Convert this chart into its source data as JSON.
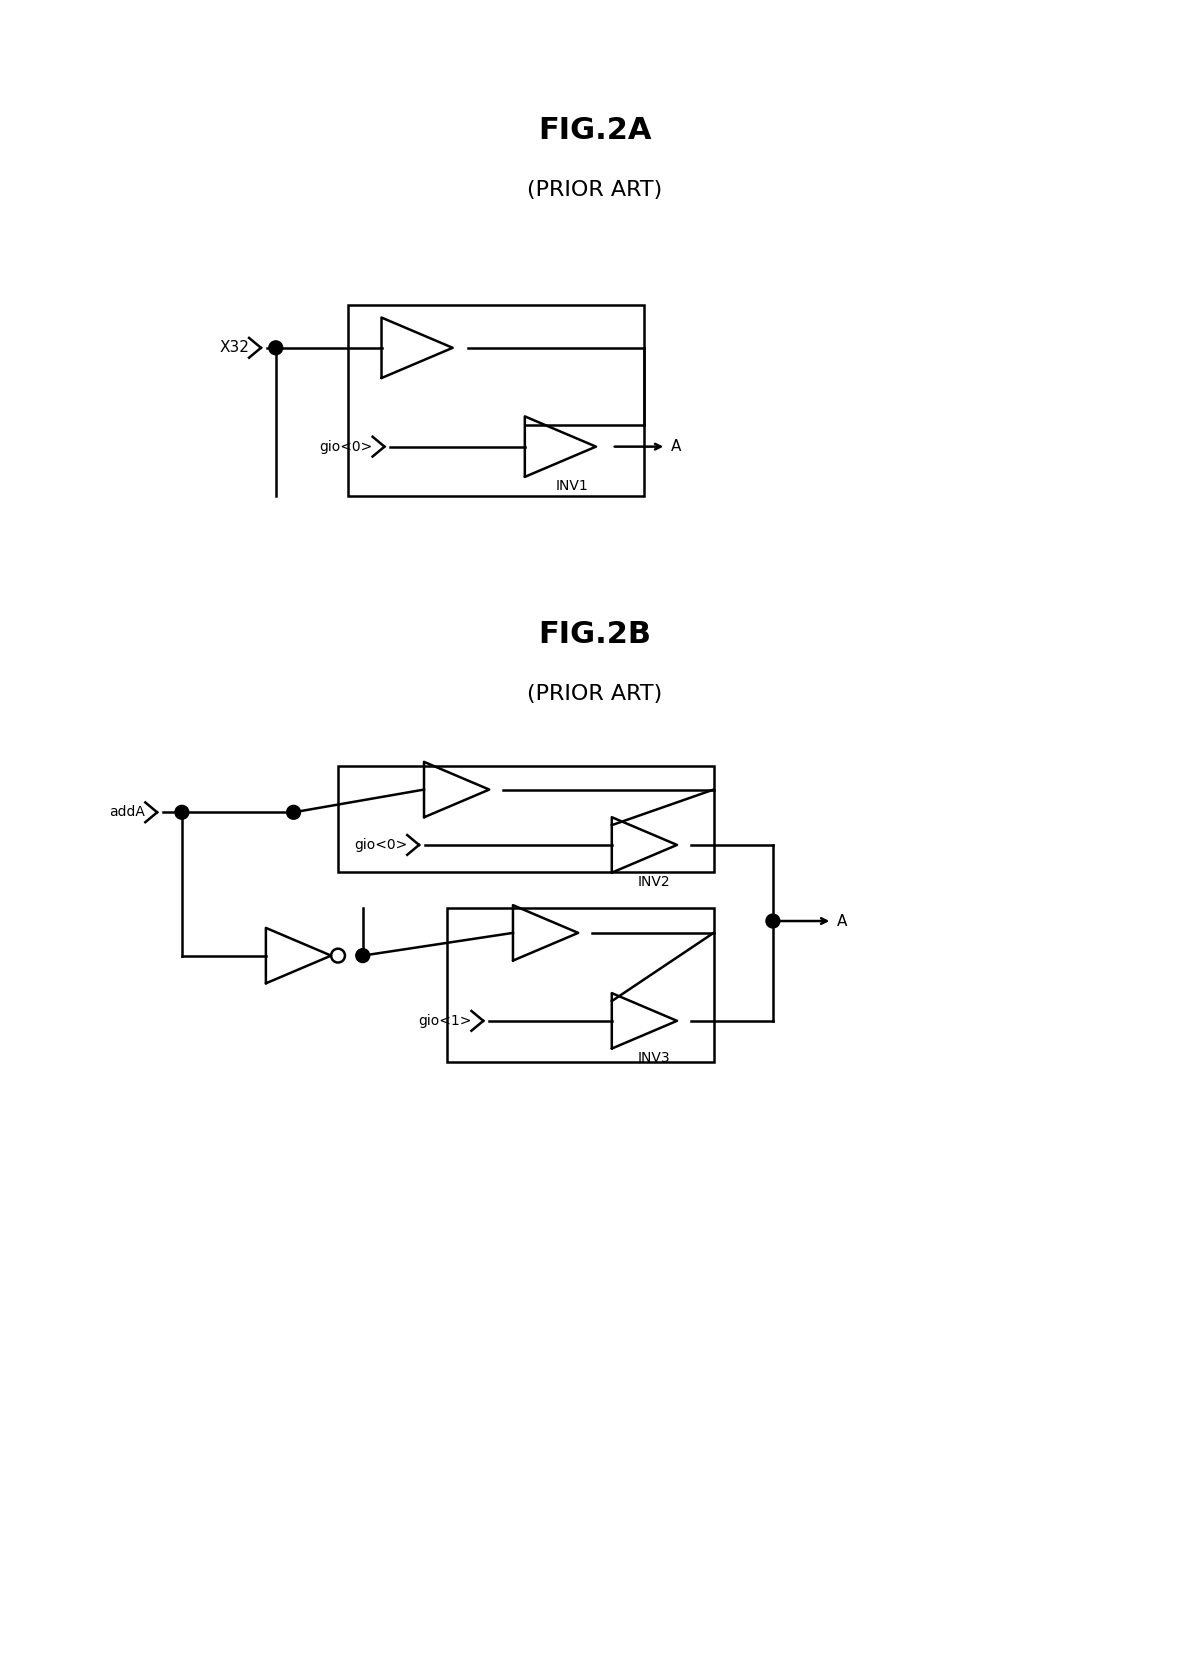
{
  "fig_title_A": "FIG.2A",
  "fig_subtitle_A": "(PRIOR ART)",
  "fig_title_B": "FIG.2B",
  "fig_subtitle_B": "(PRIOR ART)",
  "bg_color": "#ffffff",
  "line_color": "#000000",
  "font_family": "Courier New",
  "title_fontsize": 22,
  "subtitle_fontsize": 16,
  "label_fontsize": 11
}
